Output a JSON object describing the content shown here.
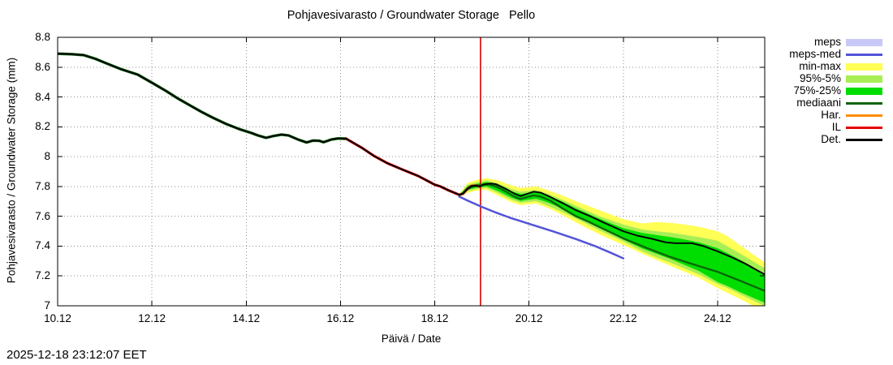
{
  "timestamp": "2025-12-18 23:12:07 EET",
  "chart_data": {
    "type": "line",
    "title": "Pohjavesivarasto / Groundwater Storage   Pello",
    "xlabel": "Päivä / Date",
    "ylabel": "Pohjavesivarasto / Groundwater Storage (mm)",
    "x_unit": "day of December (label format DD.12)",
    "y_unit": "mm",
    "xlim": [
      10,
      25.0
    ],
    "ylim": [
      7.0,
      8.8
    ],
    "grid": true,
    "background": "#ffffff",
    "legend_position": "outside-top-right",
    "xticks": [
      {
        "day": 10,
        "label": "10.12"
      },
      {
        "day": 12,
        "label": "12.12"
      },
      {
        "day": 14,
        "label": "14.12"
      },
      {
        "day": 16,
        "label": "16.12"
      },
      {
        "day": 18,
        "label": "18.12"
      },
      {
        "day": 20,
        "label": "20.12"
      },
      {
        "day": 22,
        "label": "22.12"
      },
      {
        "day": 24,
        "label": "24.12"
      }
    ],
    "yticks": [
      {
        "value": 8.8,
        "label": "8.8"
      },
      {
        "value": 8.6,
        "label": "8.6"
      },
      {
        "value": 8.4,
        "label": "8.4"
      },
      {
        "value": 8.2,
        "label": "8.2"
      },
      {
        "value": 8.0,
        "label": "8"
      },
      {
        "value": 7.8,
        "label": "7.8"
      },
      {
        "value": 7.6,
        "label": "7.6"
      },
      {
        "value": 7.4,
        "label": "7.4"
      },
      {
        "value": 7.2,
        "label": "7.2"
      },
      {
        "value": 7.0,
        "label": "7"
      }
    ],
    "now_marker": {
      "day": 18.97,
      "color": "#dd0000"
    },
    "legend": [
      {
        "label": "meps",
        "type": "band",
        "color": "#c9c9f7"
      },
      {
        "label": "meps-med",
        "type": "line",
        "color": "#5353d9"
      },
      {
        "label": "min-max",
        "type": "band",
        "color": "#ffff55"
      },
      {
        "label": "95%-5%",
        "type": "band",
        "color": "#a8ee55"
      },
      {
        "label": "75%-25%",
        "type": "band",
        "color": "#00dd00"
      },
      {
        "label": "mediaani",
        "type": "line",
        "color": "#0a640a"
      },
      {
        "label": "Har.",
        "type": "line",
        "color": "#ff8c00"
      },
      {
        "label": "IL",
        "type": "line",
        "color": "#e60000"
      },
      {
        "label": "Det.",
        "type": "line",
        "color": "#000000"
      }
    ],
    "bands": [
      {
        "name": "min-max",
        "color": "#ffff55",
        "x": [
          18.52,
          18.7,
          18.9,
          19.1,
          19.35,
          19.6,
          19.82,
          20.0,
          20.15,
          20.4,
          20.7,
          21.0,
          21.5,
          22.0,
          22.4,
          22.7,
          23.0,
          23.3,
          23.6,
          24.0,
          24.2,
          24.5,
          25.0
        ],
        "top": [
          7.75,
          7.825,
          7.845,
          7.855,
          7.84,
          7.81,
          7.79,
          7.795,
          7.8,
          7.775,
          7.74,
          7.7,
          7.64,
          7.58,
          7.552,
          7.562,
          7.556,
          7.545,
          7.53,
          7.5,
          7.468,
          7.4,
          7.29
        ],
        "bottom": [
          7.728,
          7.758,
          7.772,
          7.778,
          7.738,
          7.698,
          7.675,
          7.681,
          7.686,
          7.656,
          7.61,
          7.558,
          7.478,
          7.408,
          7.35,
          7.308,
          7.268,
          7.228,
          7.188,
          7.118,
          7.088,
          7.042,
          6.958
        ]
      },
      {
        "name": "95%-5%",
        "color": "#a8ee55",
        "x": [
          18.52,
          18.7,
          18.9,
          19.1,
          19.35,
          19.6,
          19.82,
          20.0,
          20.15,
          20.4,
          20.7,
          21.0,
          21.5,
          22.0,
          22.4,
          22.7,
          23.0,
          23.3,
          23.6,
          24.0,
          24.2,
          24.5,
          25.0
        ],
        "top": [
          7.744,
          7.813,
          7.828,
          7.842,
          7.82,
          7.786,
          7.765,
          7.771,
          7.776,
          7.751,
          7.712,
          7.67,
          7.6,
          7.545,
          7.511,
          7.5,
          7.49,
          7.476,
          7.461,
          7.436,
          7.4,
          7.346,
          7.252
        ],
        "bottom": [
          7.733,
          7.768,
          7.783,
          7.79,
          7.754,
          7.714,
          7.69,
          7.696,
          7.701,
          7.671,
          7.63,
          7.584,
          7.504,
          7.43,
          7.365,
          7.325,
          7.289,
          7.25,
          7.211,
          7.145,
          7.12,
          7.074,
          6.998
        ]
      },
      {
        "name": "75%-25%",
        "color": "#00dd00",
        "x": [
          18.52,
          18.7,
          18.9,
          19.1,
          19.35,
          19.6,
          19.82,
          20.0,
          20.15,
          20.4,
          20.7,
          21.0,
          21.5,
          22.0,
          22.4,
          22.7,
          23.0,
          23.3,
          23.6,
          24.0,
          24.2,
          24.5,
          25.0
        ],
        "top": [
          7.742,
          7.803,
          7.818,
          7.83,
          7.806,
          7.77,
          7.75,
          7.756,
          7.764,
          7.74,
          7.7,
          7.653,
          7.583,
          7.52,
          7.489,
          7.475,
          7.461,
          7.445,
          7.426,
          7.386,
          7.355,
          7.305,
          7.215
        ],
        "bottom": [
          7.736,
          7.778,
          7.793,
          7.8,
          7.768,
          7.728,
          7.703,
          7.712,
          7.718,
          7.693,
          7.653,
          7.604,
          7.524,
          7.444,
          7.385,
          7.349,
          7.314,
          7.274,
          7.234,
          7.16,
          7.134,
          7.088,
          7.02
        ]
      }
    ],
    "series": [
      {
        "name": "mediaani-history",
        "legend": "mediaani",
        "color": "#0a640a",
        "width": 3.4,
        "points": [
          [
            10.0,
            8.69
          ],
          [
            10.3,
            8.687
          ],
          [
            10.55,
            8.681
          ],
          [
            10.8,
            8.656
          ],
          [
            11.0,
            8.63
          ],
          [
            11.35,
            8.586
          ],
          [
            11.7,
            8.55
          ],
          [
            12.03,
            8.49
          ],
          [
            12.3,
            8.44
          ],
          [
            12.55,
            8.39
          ],
          [
            12.8,
            8.345
          ],
          [
            13.05,
            8.3
          ],
          [
            13.3,
            8.26
          ],
          [
            13.57,
            8.22
          ],
          [
            13.85,
            8.185
          ],
          [
            14.12,
            8.158
          ],
          [
            14.25,
            8.142
          ],
          [
            14.42,
            8.126
          ],
          [
            14.6,
            8.14
          ],
          [
            14.75,
            8.148
          ],
          [
            14.9,
            8.142
          ],
          [
            15.1,
            8.115
          ],
          [
            15.28,
            8.095
          ],
          [
            15.42,
            8.108
          ],
          [
            15.55,
            8.106
          ],
          [
            15.64,
            8.097
          ],
          [
            15.8,
            8.114
          ],
          [
            15.95,
            8.122
          ],
          [
            16.12,
            8.12
          ]
        ]
      },
      {
        "name": "IL-observed",
        "legend": "IL",
        "color": "#e60000",
        "width": 3.2,
        "points": [
          [
            16.12,
            8.12
          ],
          [
            16.45,
            8.06
          ],
          [
            16.71,
            8.005
          ],
          [
            17.0,
            7.955
          ],
          [
            17.3,
            7.915
          ],
          [
            17.65,
            7.87
          ],
          [
            18.0,
            7.812
          ],
          [
            18.12,
            7.8
          ],
          [
            18.3,
            7.773
          ],
          [
            18.45,
            7.753
          ],
          [
            18.52,
            7.744
          ],
          [
            18.6,
            7.752
          ],
          [
            18.68,
            7.78
          ],
          [
            18.78,
            7.803
          ],
          [
            18.88,
            7.806
          ],
          [
            18.96,
            7.8
          ]
        ]
      },
      {
        "name": "mediaani-forecast",
        "legend": "mediaani",
        "color": "#0a640a",
        "width": 2.3,
        "points": [
          [
            18.52,
            7.74
          ],
          [
            18.62,
            7.762
          ],
          [
            18.72,
            7.79
          ],
          [
            18.85,
            7.803
          ],
          [
            19.0,
            7.81
          ],
          [
            19.15,
            7.813
          ],
          [
            19.3,
            7.8
          ],
          [
            19.5,
            7.768
          ],
          [
            19.7,
            7.73
          ],
          [
            19.82,
            7.716
          ],
          [
            19.95,
            7.728
          ],
          [
            20.1,
            7.74
          ],
          [
            20.25,
            7.732
          ],
          [
            20.45,
            7.705
          ],
          [
            20.7,
            7.655
          ],
          [
            21.0,
            7.6
          ],
          [
            21.25,
            7.565
          ],
          [
            21.5,
            7.527
          ],
          [
            22.0,
            7.452
          ],
          [
            22.5,
            7.387
          ],
          [
            23.0,
            7.327
          ],
          [
            23.5,
            7.276
          ],
          [
            24.0,
            7.228
          ],
          [
            24.5,
            7.165
          ],
          [
            25.0,
            7.1
          ]
        ]
      },
      {
        "name": "meps-med",
        "legend": "meps-med",
        "color": "#5353d9",
        "width": 2.5,
        "points": [
          [
            18.52,
            7.732
          ],
          [
            18.7,
            7.705
          ],
          [
            19.0,
            7.663
          ],
          [
            19.3,
            7.625
          ],
          [
            19.6,
            7.59
          ],
          [
            20.0,
            7.55
          ],
          [
            20.5,
            7.5
          ],
          [
            21.0,
            7.447
          ],
          [
            21.4,
            7.4
          ],
          [
            21.7,
            7.36
          ],
          [
            22.0,
            7.318
          ]
        ]
      },
      {
        "name": "Det",
        "legend": "Det.",
        "color": "#000000",
        "width": 1.9,
        "points": [
          [
            10.0,
            8.69
          ],
          [
            10.3,
            8.687
          ],
          [
            10.55,
            8.681
          ],
          [
            10.8,
            8.656
          ],
          [
            11.0,
            8.63
          ],
          [
            11.35,
            8.586
          ],
          [
            11.7,
            8.55
          ],
          [
            12.03,
            8.49
          ],
          [
            12.3,
            8.44
          ],
          [
            12.55,
            8.39
          ],
          [
            12.8,
            8.345
          ],
          [
            13.05,
            8.3
          ],
          [
            13.3,
            8.26
          ],
          [
            13.57,
            8.22
          ],
          [
            13.85,
            8.185
          ],
          [
            14.12,
            8.158
          ],
          [
            14.25,
            8.142
          ],
          [
            14.42,
            8.126
          ],
          [
            14.6,
            8.14
          ],
          [
            14.75,
            8.148
          ],
          [
            14.9,
            8.142
          ],
          [
            15.1,
            8.115
          ],
          [
            15.28,
            8.095
          ],
          [
            15.42,
            8.108
          ],
          [
            15.55,
            8.106
          ],
          [
            15.64,
            8.097
          ],
          [
            15.8,
            8.114
          ],
          [
            15.95,
            8.122
          ],
          [
            16.12,
            8.12
          ],
          [
            16.45,
            8.06
          ],
          [
            16.71,
            8.005
          ],
          [
            17.0,
            7.955
          ],
          [
            17.3,
            7.915
          ],
          [
            17.65,
            7.87
          ],
          [
            18.0,
            7.812
          ],
          [
            18.12,
            7.8
          ],
          [
            18.3,
            7.773
          ],
          [
            18.45,
            7.753
          ],
          [
            18.52,
            7.744
          ],
          [
            18.6,
            7.752
          ],
          [
            18.68,
            7.78
          ],
          [
            18.78,
            7.803
          ],
          [
            18.88,
            7.806
          ],
          [
            18.96,
            7.8
          ],
          [
            19.05,
            7.815
          ],
          [
            19.18,
            7.82
          ],
          [
            19.3,
            7.815
          ],
          [
            19.5,
            7.785
          ],
          [
            19.7,
            7.75
          ],
          [
            19.82,
            7.735
          ],
          [
            19.95,
            7.75
          ],
          [
            20.1,
            7.765
          ],
          [
            20.25,
            7.758
          ],
          [
            20.45,
            7.73
          ],
          [
            20.7,
            7.69
          ],
          [
            21.0,
            7.64
          ],
          [
            21.3,
            7.6
          ],
          [
            21.6,
            7.555
          ],
          [
            22.0,
            7.5
          ],
          [
            22.3,
            7.47
          ],
          [
            22.6,
            7.45
          ],
          [
            22.9,
            7.425
          ],
          [
            23.1,
            7.42
          ],
          [
            23.45,
            7.42
          ],
          [
            23.7,
            7.4
          ],
          [
            24.0,
            7.365
          ],
          [
            24.3,
            7.325
          ],
          [
            24.6,
            7.28
          ],
          [
            25.0,
            7.21
          ]
        ]
      }
    ]
  }
}
